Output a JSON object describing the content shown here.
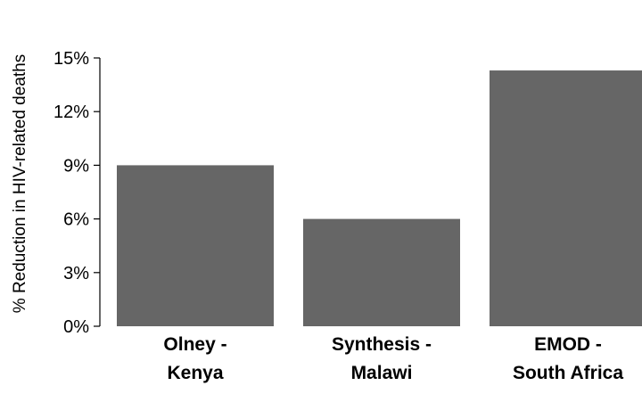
{
  "chart_data": {
    "type": "bar",
    "title": "",
    "xlabel": "",
    "ylabel": "% Reduction in HIV-related deaths",
    "categories": [
      [
        "Olney -",
        "Kenya"
      ],
      [
        "Synthesis -",
        "Malawi"
      ],
      [
        "EMOD -",
        "South Africa"
      ]
    ],
    "values": [
      9.0,
      6.0,
      14.3
    ],
    "ylim": [
      0,
      15
    ],
    "yticks": [
      0,
      3,
      6,
      9,
      12,
      15
    ],
    "ytick_labels": [
      "0%",
      "3%",
      "6%",
      "9%",
      "12%",
      "15%"
    ],
    "grid": false,
    "legend": "none",
    "bar_color": "#666666"
  }
}
